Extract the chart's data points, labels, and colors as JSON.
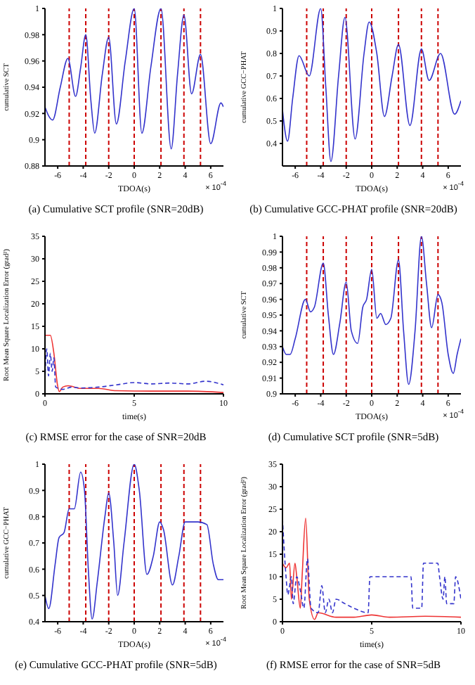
{
  "chart_data": [
    {
      "type": "line",
      "title": "(a) Cumulative SCT profile (SNR=20dB)",
      "xlabel": "TDOA(s)",
      "ylabel": "cumulative SCT",
      "annotations": [
        "× 10$^{-4}$"
      ],
      "x": [
        -7,
        -6.7,
        -6.4,
        -5.8,
        -5.2,
        -4.6,
        -4.2,
        -3.8,
        -3.4,
        -3.1,
        -2.5,
        -2.0,
        -1.4,
        -0.7,
        0,
        0.6,
        1.3,
        2.1,
        2.9,
        3.4,
        3.9,
        4.5,
        5.2,
        6.0,
        6.8,
        7
      ],
      "series": [
        {
          "color": "#3333cc",
          "line_style": "solid",
          "values": [
            0.925,
            0.918,
            0.915,
            0.94,
            0.962,
            0.933,
            0.955,
            0.98,
            0.93,
            0.905,
            0.95,
            0.978,
            0.912,
            0.96,
            1.0,
            0.905,
            0.955,
            1.0,
            0.893,
            0.95,
            0.995,
            0.935,
            0.965,
            0.897,
            0.928,
            0.925
          ]
        }
      ],
      "ref_lines": [
        {
          "axis": "x",
          "value": -5.1,
          "color": "#cc0000",
          "line_style": "dashed"
        },
        {
          "axis": "x",
          "value": -3.8,
          "color": "#cc0000",
          "line_style": "dashed"
        },
        {
          "axis": "x",
          "value": -2,
          "color": "#cc0000",
          "line_style": "dashed"
        },
        {
          "axis": "x",
          "value": 0,
          "color": "#cc0000",
          "line_style": "dashed"
        },
        {
          "axis": "x",
          "value": 2.1,
          "color": "#cc0000",
          "line_style": "dashed"
        },
        {
          "axis": "x",
          "value": 3.9,
          "color": "#cc0000",
          "line_style": "dashed"
        },
        {
          "axis": "x",
          "value": 5.2,
          "color": "#cc0000",
          "line_style": "dashed"
        }
      ],
      "xlim": [
        -7,
        7
      ],
      "xticks": [
        -6,
        -4,
        -2,
        0,
        2,
        4,
        6
      ],
      "ylim": [
        0.88,
        1
      ],
      "yticks": [
        0.88,
        0.9,
        0.92,
        0.94,
        0.96,
        0.98,
        1
      ],
      "marker": "none"
    },
    {
      "type": "line",
      "title": "(b) Cumulative GCC-PHAT profile (SNR=20dB)",
      "xlabel": "TDOA(s)",
      "ylabel": "cumulative GCC−PHAT",
      "annotations": [
        "× 10$^{-4}$"
      ],
      "x": [
        -7,
        -6.6,
        -6.2,
        -5.7,
        -4.9,
        -4.0,
        -3.6,
        -3.2,
        -2.6,
        -2.1,
        -1.3,
        -0.6,
        -0.2,
        0.4,
        1.0,
        1.6,
        2.1,
        3.0,
        3.9,
        4.5,
        5.4,
        6.5,
        7
      ],
      "series": [
        {
          "color": "#3333cc",
          "line_style": "solid",
          "values": [
            0.55,
            0.41,
            0.6,
            0.79,
            0.7,
            1.0,
            0.65,
            0.32,
            0.7,
            0.96,
            0.42,
            0.8,
            0.94,
            0.8,
            0.52,
            0.7,
            0.84,
            0.48,
            0.82,
            0.68,
            0.8,
            0.53,
            0.59
          ]
        }
      ],
      "ref_lines": [
        {
          "axis": "x",
          "value": -5.1,
          "color": "#cc0000",
          "line_style": "dashed"
        },
        {
          "axis": "x",
          "value": -3.8,
          "color": "#cc0000",
          "line_style": "dashed"
        },
        {
          "axis": "x",
          "value": -2,
          "color": "#cc0000",
          "line_style": "dashed"
        },
        {
          "axis": "x",
          "value": 0,
          "color": "#cc0000",
          "line_style": "dashed"
        },
        {
          "axis": "x",
          "value": 2.1,
          "color": "#cc0000",
          "line_style": "dashed"
        },
        {
          "axis": "x",
          "value": 3.9,
          "color": "#cc0000",
          "line_style": "dashed"
        },
        {
          "axis": "x",
          "value": 5.2,
          "color": "#cc0000",
          "line_style": "dashed"
        }
      ],
      "xlim": [
        -7,
        7
      ],
      "xticks": [
        -6,
        -4,
        -2,
        0,
        2,
        4,
        6
      ],
      "ylim": [
        0.3,
        1
      ],
      "yticks": [
        0.4,
        0.5,
        0.6,
        0.7,
        0.8,
        0.9,
        1
      ],
      "marker": "none"
    },
    {
      "type": "line",
      "title": "(c) RMSE error for the case of SNR=20dB",
      "xlabel": "time(s)",
      "ylabel": "Root Mean Square Localization Error (grad²)",
      "series": [
        {
          "color": "#ee3333",
          "line_style": "solid",
          "x": [
            0,
            0.3,
            0.5,
            0.7,
            0.8,
            1.0,
            1.3,
            2,
            3,
            4,
            6,
            8,
            10
          ],
          "values": [
            13,
            13,
            9,
            2,
            0.5,
            1.5,
            1.8,
            1.2,
            1.2,
            0.7,
            0.6,
            0.6,
            0.3
          ]
        },
        {
          "color": "#3333cc",
          "line_style": "dashed",
          "x": [
            0,
            0.1,
            0.2,
            0.3,
            0.4,
            0.5,
            0.6,
            1.0,
            1.5,
            2,
            3,
            4,
            5,
            6,
            7,
            8,
            9,
            10
          ],
          "values": [
            3,
            10,
            4,
            9,
            5,
            8,
            1.5,
            1.0,
            1.5,
            1.3,
            1.5,
            2,
            2.5,
            2.2,
            2.4,
            2.2,
            2.8,
            2.0
          ]
        }
      ],
      "xlim": [
        0,
        10
      ],
      "xticks": [
        0,
        5,
        10
      ],
      "ylim": [
        0,
        35
      ],
      "yticks": [
        0,
        5,
        10,
        15,
        20,
        25,
        30,
        35
      ],
      "marker": "none"
    },
    {
      "type": "line",
      "title": "(d) Cumulative SCT profile (SNR=5dB)",
      "xlabel": "TDOA(s)",
      "ylabel": "cumulative SCT",
      "annotations": [
        "× 10$^{-4}$"
      ],
      "x": [
        -7,
        -6.7,
        -6.4,
        -6,
        -5.2,
        -4.8,
        -4.5,
        -3.8,
        -3.4,
        -3.0,
        -2.5,
        -2.0,
        -1.6,
        -1.1,
        -0.7,
        -0.4,
        0,
        0.4,
        0.7,
        1.1,
        1.5,
        2.1,
        2.5,
        2.9,
        3.4,
        3.9,
        4.3,
        4.7,
        5.2,
        5.5,
        6.0,
        6.4,
        6.7,
        7
      ],
      "series": [
        {
          "color": "#3333cc",
          "line_style": "solid",
          "values": [
            0.93,
            0.925,
            0.925,
            0.935,
            0.96,
            0.952,
            0.955,
            0.983,
            0.95,
            0.925,
            0.945,
            0.971,
            0.94,
            0.932,
            0.955,
            0.96,
            0.979,
            0.948,
            0.951,
            0.944,
            0.948,
            0.985,
            0.94,
            0.906,
            0.94,
            1.0,
            0.97,
            0.942,
            0.963,
            0.958,
            0.925,
            0.913,
            0.925,
            0.935
          ]
        }
      ],
      "ref_lines": [
        {
          "axis": "x",
          "value": -5.1,
          "color": "#cc0000",
          "line_style": "dashed"
        },
        {
          "axis": "x",
          "value": -3.8,
          "color": "#cc0000",
          "line_style": "dashed"
        },
        {
          "axis": "x",
          "value": -2,
          "color": "#cc0000",
          "line_style": "dashed"
        },
        {
          "axis": "x",
          "value": 0,
          "color": "#cc0000",
          "line_style": "dashed"
        },
        {
          "axis": "x",
          "value": 2.1,
          "color": "#cc0000",
          "line_style": "dashed"
        },
        {
          "axis": "x",
          "value": 3.9,
          "color": "#cc0000",
          "line_style": "dashed"
        },
        {
          "axis": "x",
          "value": 5.2,
          "color": "#cc0000",
          "line_style": "dashed"
        }
      ],
      "xlim": [
        -7,
        7
      ],
      "xticks": [
        -6,
        -4,
        -2,
        0,
        2,
        4,
        6
      ],
      "ylim": [
        0.9,
        1
      ],
      "yticks": [
        0.9,
        0.91,
        0.92,
        0.93,
        0.94,
        0.95,
        0.96,
        0.97,
        0.98,
        0.99,
        1
      ],
      "marker": "none"
    },
    {
      "type": "line",
      "title": "(e) Cumulative GCC-PHAT profile (SNR=5dB)",
      "xlabel": "TDOA(s)",
      "ylabel": "cumulative GCC−PHAT",
      "annotations": [
        "× 10$^{-4}$"
      ],
      "x": [
        -7,
        -6.7,
        -6.2,
        -5.9,
        -5.5,
        -5.1,
        -4.7,
        -4.2,
        -3.9,
        -3.6,
        -3.3,
        -2.9,
        -2.3,
        -2.0,
        -1.6,
        -1.3,
        -0.8,
        0,
        0.4,
        1.0,
        1.5,
        2.0,
        2.3,
        3.0,
        3.5,
        4.0,
        5.0,
        5.7,
        6.2,
        6.6,
        7
      ],
      "series": [
        {
          "color": "#3333cc",
          "line_style": "solid",
          "values": [
            0.5,
            0.45,
            0.62,
            0.72,
            0.74,
            0.83,
            0.83,
            0.97,
            0.9,
            0.6,
            0.41,
            0.55,
            0.8,
            0.89,
            0.7,
            0.5,
            0.7,
            1.0,
            0.9,
            0.58,
            0.65,
            0.78,
            0.75,
            0.54,
            0.65,
            0.78,
            0.78,
            0.77,
            0.62,
            0.56,
            0.56
          ]
        }
      ],
      "ref_lines": [
        {
          "axis": "x",
          "value": -5.1,
          "color": "#cc0000",
          "line_style": "dashed"
        },
        {
          "axis": "x",
          "value": -3.8,
          "color": "#cc0000",
          "line_style": "dashed"
        },
        {
          "axis": "x",
          "value": -2,
          "color": "#cc0000",
          "line_style": "dashed"
        },
        {
          "axis": "x",
          "value": 0,
          "color": "#cc0000",
          "line_style": "dashed"
        },
        {
          "axis": "x",
          "value": 2.1,
          "color": "#cc0000",
          "line_style": "dashed"
        },
        {
          "axis": "x",
          "value": 3.9,
          "color": "#cc0000",
          "line_style": "dashed"
        },
        {
          "axis": "x",
          "value": 5.2,
          "color": "#cc0000",
          "line_style": "dashed"
        }
      ],
      "xlim": [
        -7,
        7
      ],
      "xticks": [
        -6,
        -4,
        -2,
        0,
        2,
        4,
        6
      ],
      "ylim": [
        0.4,
        1
      ],
      "yticks": [
        0.4,
        0.5,
        0.6,
        0.7,
        0.8,
        0.9,
        1
      ],
      "marker": "none"
    },
    {
      "type": "line",
      "title": "(f) RMSE error for the case of SNR=5dB",
      "xlabel": "time(s)",
      "ylabel": "Root Mean Square Localization Error (grad²)",
      "series": [
        {
          "color": "#ee3333",
          "line_style": "solid",
          "x": [
            0,
            0.2,
            0.4,
            0.5,
            0.7,
            0.8,
            1.0,
            1.1,
            1.3,
            1.5,
            1.8,
            2,
            3,
            4,
            5,
            6,
            8,
            10
          ],
          "values": [
            13,
            12,
            13,
            5,
            13,
            10,
            3,
            10,
            23,
            5,
            0.5,
            2,
            1,
            1,
            1.5,
            1,
            1.2,
            1
          ]
        },
        {
          "color": "#3333cc",
          "line_style": "dashed",
          "x": [
            0,
            0.2,
            0.3,
            0.5,
            0.6,
            0.8,
            1.0,
            1.2,
            1.4,
            1.6,
            2,
            2.2,
            2.4,
            2.6,
            2.8,
            3,
            3.5,
            4,
            4.8,
            4.9,
            7.2,
            7.3,
            7.8,
            7.9,
            8.7,
            8.8,
            9.0,
            9.1,
            9.2,
            9.6,
            9.7,
            10
          ],
          "values": [
            23,
            10,
            6,
            10,
            4,
            10,
            7,
            3,
            14,
            3,
            2,
            8,
            2,
            5,
            2,
            5,
            4,
            3,
            2,
            10,
            10,
            3,
            3,
            13,
            13,
            10,
            5,
            10,
            4,
            4,
            10,
            5
          ]
        }
      ],
      "xlim": [
        0,
        10
      ],
      "xticks": [
        0,
        5,
        10
      ],
      "ylim": [
        0,
        35
      ],
      "yticks": [
        0,
        5,
        10,
        15,
        20,
        25,
        30,
        35
      ],
      "marker": "none"
    }
  ]
}
